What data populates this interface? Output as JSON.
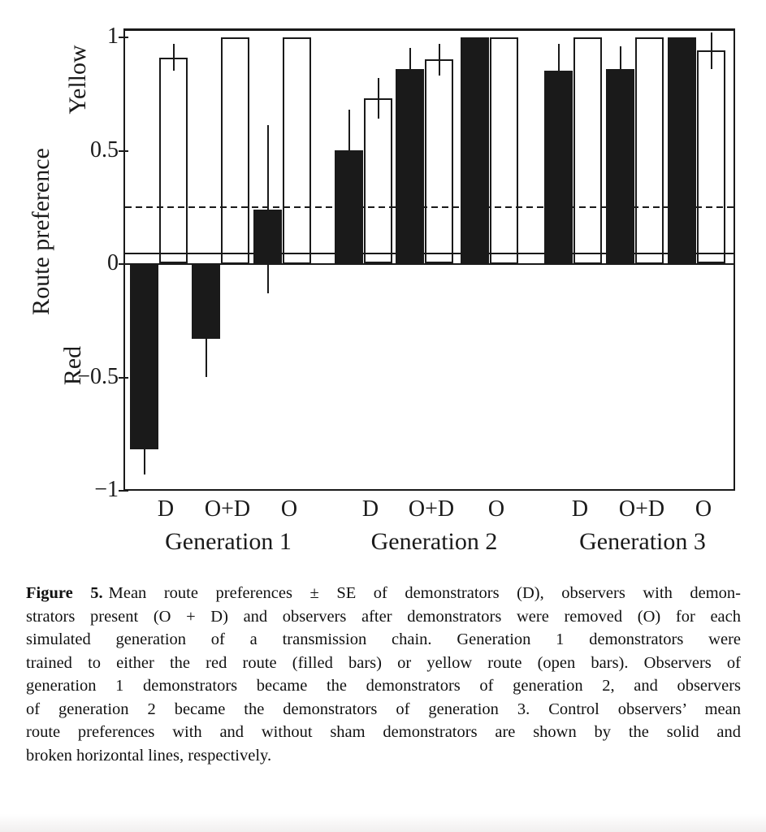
{
  "figure_caption": {
    "label": "Figure 5.",
    "lines": [
      "Mean route preferences ± SE of demonstrators (D), observers with demon-",
      "strators present (O + D) and observers after demonstrators were removed (O) for each",
      "simulated generation of a transmission chain. Generation 1 demonstrators were",
      "trained to either the red route (filled bars) or yellow route (open bars). Observers of",
      "generation 1 demonstrators became the demonstrators of generation 2, and observers",
      "of generation 2 became the demonstrators of generation 3. Control observers’ mean",
      "route preferences with and without sham demonstrators are shown by the solid and",
      "broken horizontal lines, respectively."
    ]
  },
  "chart_data": {
    "type": "bar",
    "ylabel": "Route preference",
    "y_axis_upper_label": "Yellow",
    "y_axis_lower_label": "Red",
    "ylim": [
      -1,
      1.04
    ],
    "grid": false,
    "yticks": [
      {
        "label": "1",
        "value": 1
      },
      {
        "label": "0.5",
        "value": 0.5
      },
      {
        "label": "0",
        "value": 0
      },
      {
        "label": "−0.5",
        "value": -0.5
      },
      {
        "label": "−1",
        "value": -1
      }
    ],
    "series_legend": [
      {
        "name": "red route",
        "style": "filled"
      },
      {
        "name": "yellow route",
        "style": "open"
      }
    ],
    "groups": [
      {
        "label": "Generation 1",
        "pairs": [
          {
            "condition": "D",
            "filled": {
              "mean": -0.82,
              "se": 0.11
            },
            "open": {
              "mean": 0.91,
              "se": 0.06
            }
          },
          {
            "condition": "O+D",
            "filled": {
              "mean": -0.33,
              "se": 0.17
            },
            "open": {
              "mean": 1.0,
              "se": 0
            }
          },
          {
            "condition": "O",
            "filled": {
              "mean": 0.24,
              "se": 0.37
            },
            "open": {
              "mean": 1.0,
              "se": 0
            }
          }
        ]
      },
      {
        "label": "Generation 2",
        "pairs": [
          {
            "condition": "D",
            "filled": {
              "mean": 0.5,
              "se": 0.18
            },
            "open": {
              "mean": 0.73,
              "se": 0.09
            }
          },
          {
            "condition": "O+D",
            "filled": {
              "mean": 0.86,
              "se": 0.09
            },
            "open": {
              "mean": 0.9,
              "se": 0.07
            }
          },
          {
            "condition": "O",
            "filled": {
              "mean": 1.0,
              "se": 0
            },
            "open": {
              "mean": 1.0,
              "se": 0
            }
          }
        ]
      },
      {
        "label": "Generation 3",
        "pairs": [
          {
            "condition": "D",
            "filled": {
              "mean": 0.85,
              "se": 0.12
            },
            "open": {
              "mean": 1.0,
              "se": 0
            }
          },
          {
            "condition": "O+D",
            "filled": {
              "mean": 0.86,
              "se": 0.1
            },
            "open": {
              "mean": 1.0,
              "se": 0
            }
          },
          {
            "condition": "O",
            "filled": {
              "mean": 1.0,
              "se": 0
            },
            "open": {
              "mean": 0.94,
              "se": 0.08
            }
          }
        ]
      }
    ],
    "reference_lines": [
      {
        "style": "solid",
        "value": 0.045,
        "label": "control observers with sham demonstrators"
      },
      {
        "style": "dashed",
        "value": 0.25,
        "label": "control observers without sham demonstrators"
      }
    ],
    "ink_color": "#1a1a1a"
  }
}
